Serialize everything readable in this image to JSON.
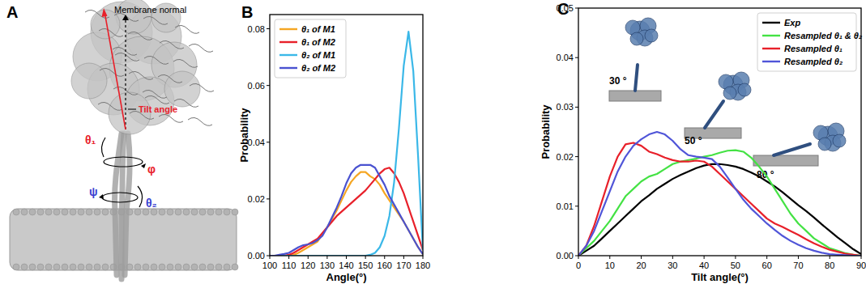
{
  "chart_data": [
    {
      "type": "diagram",
      "panel_label": "A",
      "labels": {
        "normal": "Membrane normal",
        "tilt": "Tilt angle",
        "theta1": "θ₁",
        "phi": "φ",
        "psi": "ψ",
        "theta2": "θ₂"
      }
    },
    {
      "type": "line",
      "panel_label": "B",
      "x_label": "Angle(°)",
      "y_label": "Probability",
      "x": [
        100,
        102.5,
        105,
        107.5,
        110,
        112.5,
        115,
        117.5,
        120,
        122.5,
        125,
        127.5,
        130,
        132.5,
        135,
        137.5,
        140,
        142.5,
        145,
        147.5,
        150,
        152.5,
        155,
        157.5,
        160,
        162.5,
        165,
        167.5,
        170,
        172.5,
        175,
        177.5,
        180
      ],
      "xlim": [
        100,
        180
      ],
      "xticks": [
        100,
        110,
        120,
        130,
        140,
        150,
        160,
        170,
        180
      ],
      "ylim": [
        0,
        0.085
      ],
      "yticks": [
        {
          "value": 0,
          "label": "0.00"
        },
        {
          "value": 0.02,
          "label": "0.02"
        },
        {
          "value": 0.04,
          "label": "0.04"
        },
        {
          "value": 0.06,
          "label": "0.06"
        },
        {
          "value": 0.08,
          "label": "0.08"
        }
      ],
      "legend": "upper left",
      "grid": false,
      "series": [
        {
          "name": "θ₁ of M1",
          "color": "#f5a623",
          "values": [
            0,
            0,
            0,
            0,
            0,
            0.0003,
            0.001,
            0.002,
            0.003,
            0.004,
            0.005,
            0.0075,
            0.01,
            0.013,
            0.016,
            0.0195,
            0.023,
            0.026,
            0.028,
            0.0295,
            0.0295,
            0.028,
            0.027,
            0.025,
            0.022,
            0.0195,
            0.017,
            0.0145,
            0.012,
            0.009,
            0.006,
            0.003,
            0.0005
          ]
        },
        {
          "name": "θ₁ of M2",
          "color": "#e8202a",
          "values": [
            0,
            0,
            0,
            0,
            0.0003,
            0.001,
            0.002,
            0.003,
            0.004,
            0.005,
            0.006,
            0.008,
            0.01,
            0.012,
            0.014,
            0.0155,
            0.017,
            0.0185,
            0.02,
            0.0215,
            0.023,
            0.025,
            0.027,
            0.029,
            0.0305,
            0.031,
            0.029,
            0.026,
            0.022,
            0.017,
            0.012,
            0.007,
            0.002
          ]
        },
        {
          "name": "θ₂ of M1",
          "color": "#3bb8e8",
          "values": [
            0,
            0,
            0,
            0,
            0,
            0,
            0,
            0,
            0,
            0,
            0,
            0,
            0,
            0,
            0,
            0,
            0,
            0,
            0,
            0,
            0,
            0.0003,
            0.001,
            0.003,
            0.007,
            0.014,
            0.026,
            0.045,
            0.067,
            0.079,
            0.065,
            0.035,
            0.002
          ]
        },
        {
          "name": "θ₂ of M2",
          "color": "#4a52d0",
          "values": [
            0,
            0,
            0.0003,
            0.0006,
            0.001,
            0.002,
            0.003,
            0.0037,
            0.004,
            0.0045,
            0.0055,
            0.007,
            0.01,
            0.0135,
            0.017,
            0.021,
            0.0255,
            0.029,
            0.031,
            0.032,
            0.032,
            0.032,
            0.031,
            0.028,
            0.025,
            0.021,
            0.018,
            0.015,
            0.012,
            0.009,
            0.006,
            0.003,
            0.0005
          ]
        }
      ]
    },
    {
      "type": "line",
      "panel_label": "C",
      "x_label": "Tilt angle(°)",
      "y_label": "Probability",
      "x": [
        0,
        2.5,
        5,
        7.5,
        10,
        12.5,
        15,
        17.5,
        20,
        22.5,
        25,
        27.5,
        30,
        32.5,
        35,
        37.5,
        40,
        42.5,
        45,
        47.5,
        50,
        52.5,
        55,
        57.5,
        60,
        62.5,
        65,
        67.5,
        70,
        72.5,
        75,
        77.5,
        80,
        82.5,
        85,
        87.5,
        90
      ],
      "xlim": [
        0,
        90
      ],
      "xticks": [
        0,
        10,
        20,
        30,
        40,
        50,
        60,
        70,
        80,
        90
      ],
      "ylim": [
        0,
        0.05
      ],
      "yticks": [
        {
          "value": 0,
          "label": "0.00"
        },
        {
          "value": 0.01,
          "label": "0.01"
        },
        {
          "value": 0.02,
          "label": "0.02"
        },
        {
          "value": 0.03,
          "label": "0.03"
        },
        {
          "value": 0.04,
          "label": "0.04"
        },
        {
          "value": 0.05,
          "label": "0.05"
        }
      ],
      "legend": "upper right",
      "grid": false,
      "annotations": [
        {
          "text": "30 °"
        },
        {
          "text": "50 °"
        },
        {
          "text": "80 °"
        }
      ],
      "series": [
        {
          "name": "Exp",
          "color": "#000000",
          "values": [
            0,
            0.001,
            0.002,
            0.0035,
            0.005,
            0.0065,
            0.008,
            0.0095,
            0.011,
            0.0122,
            0.0135,
            0.0145,
            0.0155,
            0.0163,
            0.017,
            0.0177,
            0.0182,
            0.0185,
            0.0185,
            0.0183,
            0.018,
            0.0175,
            0.0168,
            0.016,
            0.015,
            0.014,
            0.0128,
            0.0115,
            0.0102,
            0.009,
            0.0077,
            0.0063,
            0.005,
            0.0037,
            0.0025,
            0.0013,
            0.0003
          ]
        },
        {
          "name": "Resampled θ₁ & θ₂",
          "color": "#44e244",
          "values": [
            0,
            0.0015,
            0.003,
            0.005,
            0.007,
            0.0095,
            0.012,
            0.0135,
            0.015,
            0.016,
            0.0165,
            0.0175,
            0.0185,
            0.019,
            0.0193,
            0.0196,
            0.02,
            0.0203,
            0.0208,
            0.0212,
            0.0213,
            0.021,
            0.0198,
            0.018,
            0.016,
            0.0135,
            0.011,
            0.0085,
            0.0065,
            0.005,
            0.0035,
            0.0025,
            0.0015,
            0.001,
            0.0005,
            0.0002,
            0
          ]
        },
        {
          "name": "Resampled θ₁",
          "color": "#e8202a",
          "values": [
            0,
            0.002,
            0.006,
            0.011,
            0.016,
            0.02,
            0.0225,
            0.0228,
            0.0222,
            0.021,
            0.0205,
            0.0198,
            0.0193,
            0.019,
            0.019,
            0.0192,
            0.019,
            0.018,
            0.0165,
            0.015,
            0.0135,
            0.012,
            0.0105,
            0.009,
            0.0075,
            0.0065,
            0.0058,
            0.005,
            0.0042,
            0.0033,
            0.0025,
            0.0018,
            0.0012,
            0.0008,
            0.0004,
            0.0002,
            0
          ]
        },
        {
          "name": "Resampled θ₂",
          "color": "#5055d8",
          "values": [
            0,
            0.002,
            0.005,
            0.009,
            0.013,
            0.017,
            0.02,
            0.0222,
            0.0235,
            0.0245,
            0.025,
            0.0245,
            0.0232,
            0.0215,
            0.0203,
            0.02,
            0.0198,
            0.0195,
            0.018,
            0.0158,
            0.0135,
            0.0113,
            0.0095,
            0.008,
            0.0065,
            0.0052,
            0.004,
            0.003,
            0.0022,
            0.0015,
            0.001,
            0.0006,
            0.0003,
            0.0002,
            0.0001,
            0,
            0
          ]
        }
      ]
    }
  ]
}
